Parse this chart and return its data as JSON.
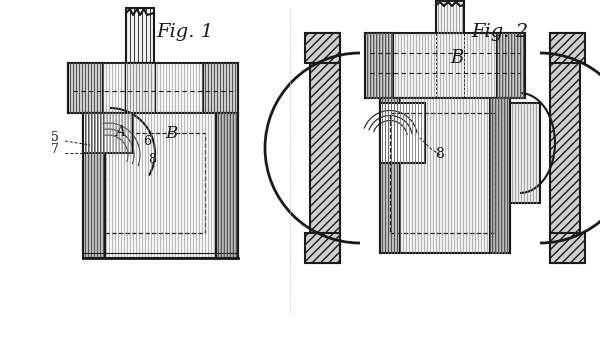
{
  "bg_color": "#ffffff",
  "line_color": "#1a1a1a",
  "hatch_color": "#333333",
  "fig1_title": "Fig. 1",
  "fig2_title": "Fig. 2",
  "labels_fig1": [
    "5",
    "7",
    "A",
    "6",
    "B",
    "8"
  ],
  "labels_fig2": [
    "B",
    "8"
  ]
}
